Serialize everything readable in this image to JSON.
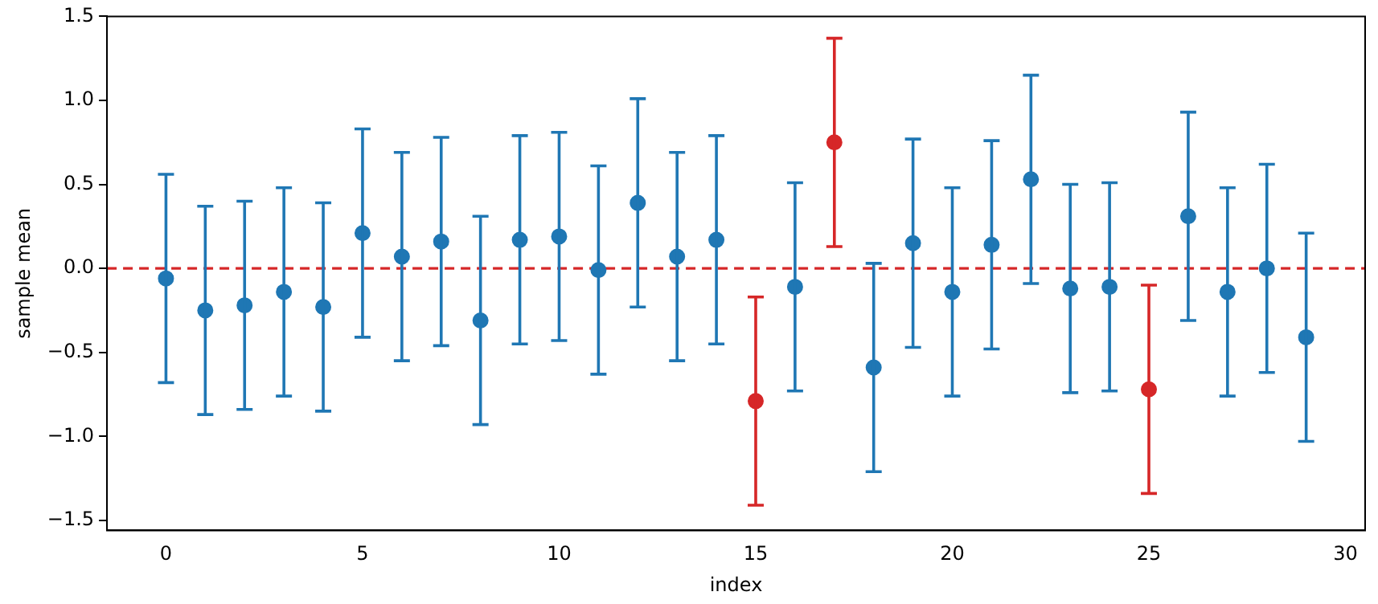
{
  "chart_data": {
    "type": "scatter",
    "xlabel": "index",
    "ylabel": "sample mean",
    "xlim": [
      -1.5,
      30.5
    ],
    "ylim": [
      -1.56,
      1.5
    ],
    "xticks": [
      0,
      5,
      10,
      15,
      20,
      25,
      30
    ],
    "yticks": [
      {
        "value": -1.5,
        "label": "−1.5"
      },
      {
        "value": -1.0,
        "label": "−1.0"
      },
      {
        "value": -0.5,
        "label": "−0.5"
      },
      {
        "value": 0,
        "label": "0.0"
      },
      {
        "value": 0.5,
        "label": "0.5"
      },
      {
        "value": 1.0,
        "label": "1.0"
      },
      {
        "value": 1.5,
        "label": "1.5"
      }
    ],
    "grid": false,
    "legend": false,
    "marker": "circle",
    "ref_lines": [
      {
        "axis": "y",
        "value": 0,
        "color": "#d62728",
        "line_style": "dashed"
      }
    ],
    "series": [
      {
        "color": "#1f77b4",
        "x": [
          0,
          1,
          2,
          3,
          4,
          5,
          6,
          7,
          8,
          9,
          10,
          11,
          12,
          13,
          14,
          16,
          18,
          19,
          20,
          21,
          22,
          23,
          24,
          26,
          27,
          28,
          29
        ],
        "values": [
          -0.06,
          -0.25,
          -0.22,
          -0.14,
          -0.23,
          0.21,
          0.07,
          0.16,
          -0.31,
          0.17,
          0.19,
          -0.01,
          0.39,
          0.07,
          0.17,
          -0.11,
          -0.59,
          0.15,
          -0.14,
          0.14,
          0.53,
          -0.12,
          -0.11,
          0.31,
          -0.14,
          0.0,
          -0.41
        ],
        "errors": [
          0.62,
          0.62,
          0.62,
          0.62,
          0.62,
          0.62,
          0.62,
          0.62,
          0.62,
          0.62,
          0.62,
          0.62,
          0.62,
          0.62,
          0.62,
          0.62,
          0.62,
          0.62,
          0.62,
          0.62,
          0.62,
          0.62,
          0.62,
          0.62,
          0.62,
          0.62,
          0.62
        ]
      },
      {
        "color": "#d62728",
        "x": [
          15,
          17,
          25
        ],
        "values": [
          -0.79,
          0.75,
          -0.72
        ],
        "errors": [
          0.62,
          0.62,
          0.62
        ]
      }
    ]
  }
}
